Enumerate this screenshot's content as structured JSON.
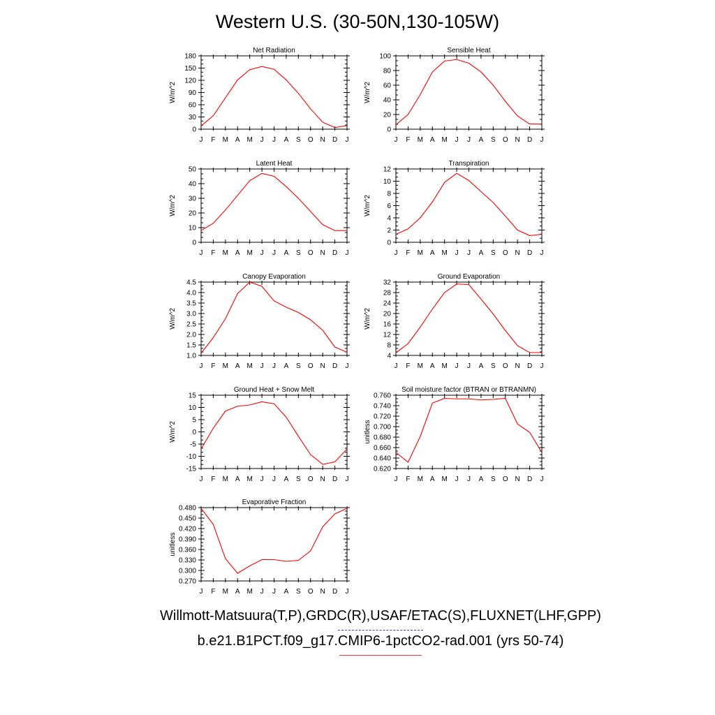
{
  "title": "Western U.S. (30-50N,130-105W)",
  "colors": {
    "model_line": "#ff0000",
    "obs_line": "#3333ff",
    "axis": "#000000"
  },
  "footer": {
    "obs_label": "Willmott-Matsuura(T,P),GRDC(R),USAF/ETAC(S),FLUXNET(LHF,GPP)",
    "model_label": "b.e21.B1PCT.f09_g17.CMIP6-1pctCO2-rad.001 (yrs 50-74)"
  },
  "chart_data": [
    {
      "type": "line",
      "title": "Net Radiation",
      "ylabel": "W/m^2",
      "categories": [
        "J",
        "F",
        "M",
        "A",
        "M",
        "J",
        "J",
        "A",
        "S",
        "O",
        "N",
        "D",
        "J"
      ],
      "ylim": [
        0,
        180
      ],
      "yticks": [
        0,
        30,
        60,
        90,
        120,
        150,
        180
      ],
      "ytick_labels": [
        "0",
        "30",
        "60",
        "90",
        "120",
        "150",
        "180"
      ],
      "values": [
        8,
        33,
        77,
        121,
        146,
        154,
        147,
        121,
        88,
        50,
        17,
        4,
        9
      ]
    },
    {
      "type": "line",
      "title": "Sensible Heat",
      "ylabel": "W/m^2",
      "categories": [
        "J",
        "F",
        "M",
        "A",
        "M",
        "J",
        "J",
        "A",
        "S",
        "O",
        "N",
        "D",
        "J"
      ],
      "ylim": [
        0,
        100
      ],
      "yticks": [
        0,
        20,
        40,
        60,
        80,
        100
      ],
      "ytick_labels": [
        "0",
        "20",
        "40",
        "60",
        "80",
        "100"
      ],
      "values": [
        6,
        20,
        47,
        78,
        93,
        95,
        90,
        78,
        60,
        38,
        18,
        7,
        7
      ]
    },
    {
      "type": "line",
      "title": "Latent Heat",
      "ylabel": "W/m^2",
      "categories": [
        "J",
        "F",
        "M",
        "A",
        "M",
        "J",
        "J",
        "A",
        "S",
        "O",
        "N",
        "D",
        "J"
      ],
      "ylim": [
        0,
        50
      ],
      "yticks": [
        0,
        10,
        20,
        30,
        40,
        50
      ],
      "ytick_labels": [
        "0",
        "10",
        "20",
        "30",
        "40",
        "50"
      ],
      "values": [
        8,
        13,
        22,
        32,
        42,
        47,
        45,
        38,
        30,
        21,
        12,
        8,
        8
      ]
    },
    {
      "type": "line",
      "title": "Transpiration",
      "ylabel": "W/m^2",
      "categories": [
        "J",
        "F",
        "M",
        "A",
        "M",
        "J",
        "J",
        "A",
        "S",
        "O",
        "N",
        "D",
        "J"
      ],
      "ylim": [
        0,
        12
      ],
      "yticks": [
        0,
        2,
        4,
        6,
        8,
        10,
        12
      ],
      "ytick_labels": [
        "0",
        "2",
        "4",
        "6",
        "8",
        "10",
        "12"
      ],
      "values": [
        1.3,
        2.2,
        4.0,
        6.6,
        9.8,
        11.3,
        10.1,
        8.3,
        6.5,
        4.3,
        2.0,
        1.1,
        1.3
      ]
    },
    {
      "type": "line",
      "title": "Canopy Evaporation",
      "ylabel": "W/m^2",
      "categories": [
        "J",
        "F",
        "M",
        "A",
        "M",
        "J",
        "J",
        "A",
        "S",
        "O",
        "N",
        "D",
        "J"
      ],
      "ylim": [
        1.0,
        4.5
      ],
      "yticks": [
        1.0,
        1.5,
        2.0,
        2.5,
        3.0,
        3.5,
        4.0,
        4.5
      ],
      "ytick_labels": [
        "1.0",
        "1.5",
        "2.0",
        "2.5",
        "3.0",
        "3.5",
        "4.0",
        "4.5"
      ],
      "values": [
        1.1,
        1.85,
        2.75,
        3.95,
        4.5,
        4.3,
        3.6,
        3.3,
        3.05,
        2.7,
        2.2,
        1.4,
        1.15
      ]
    },
    {
      "type": "line",
      "title": "Ground Evaporation",
      "ylabel": "W/m^2",
      "categories": [
        "J",
        "F",
        "M",
        "A",
        "M",
        "J",
        "J",
        "A",
        "S",
        "O",
        "N",
        "D",
        "J"
      ],
      "ylim": [
        4,
        32
      ],
      "yticks": [
        4,
        8,
        12,
        16,
        20,
        24,
        28,
        32
      ],
      "ytick_labels": [
        "4",
        "8",
        "12",
        "16",
        "20",
        "24",
        "28",
        "32"
      ],
      "values": [
        5.0,
        8.5,
        14.8,
        21.7,
        28.0,
        31.3,
        31.0,
        25.5,
        19.8,
        13.5,
        7.7,
        5.1,
        5.1
      ]
    },
    {
      "type": "line",
      "title": "Ground Heat + Snow Melt",
      "ylabel": "W/m^2",
      "categories": [
        "J",
        "F",
        "M",
        "A",
        "M",
        "J",
        "J",
        "A",
        "S",
        "O",
        "N",
        "D",
        "J"
      ],
      "ylim": [
        -15,
        15
      ],
      "yticks": [
        -15,
        -10,
        -5,
        0,
        5,
        10,
        15
      ],
      "ytick_labels": [
        "-15",
        "-10",
        "-5",
        "0",
        "5",
        "10",
        "15"
      ],
      "values": [
        -7,
        1.5,
        8.5,
        10.5,
        11,
        12.3,
        11.5,
        6,
        -1.8,
        -9.3,
        -13.3,
        -12.3,
        -7
      ]
    },
    {
      "type": "line",
      "title": "Soil moisture factor (BTRAN or BTRANMN)",
      "ylabel": "unitless",
      "categories": [
        "J",
        "F",
        "M",
        "A",
        "M",
        "J",
        "J",
        "A",
        "S",
        "O",
        "N",
        "D",
        "J"
      ],
      "ylim": [
        0.62,
        0.76
      ],
      "yticks": [
        0.62,
        0.64,
        0.66,
        0.68,
        0.7,
        0.72,
        0.74,
        0.76
      ],
      "ytick_labels": [
        "0.620",
        "0.640",
        "0.660",
        "0.680",
        "0.700",
        "0.720",
        "0.740",
        "0.760"
      ],
      "values": [
        0.651,
        0.632,
        0.681,
        0.745,
        0.754,
        0.753,
        0.753,
        0.751,
        0.752,
        0.754,
        0.705,
        0.689,
        0.651
      ]
    },
    {
      "type": "line",
      "title": "Evaporative Fraction",
      "ylabel": "unitless",
      "categories": [
        "J",
        "F",
        "M",
        "A",
        "M",
        "J",
        "J",
        "A",
        "S",
        "O",
        "N",
        "D",
        "J"
      ],
      "ylim": [
        0.27,
        0.48
      ],
      "yticks": [
        0.27,
        0.3,
        0.33,
        0.36,
        0.39,
        0.42,
        0.45,
        0.48
      ],
      "ytick_labels": [
        "0.270",
        "0.300",
        "0.330",
        "0.360",
        "0.390",
        "0.420",
        "0.450",
        "0.480"
      ],
      "values": [
        0.478,
        0.432,
        0.334,
        0.292,
        0.313,
        0.331,
        0.331,
        0.326,
        0.329,
        0.356,
        0.425,
        0.462,
        0.478
      ]
    }
  ]
}
